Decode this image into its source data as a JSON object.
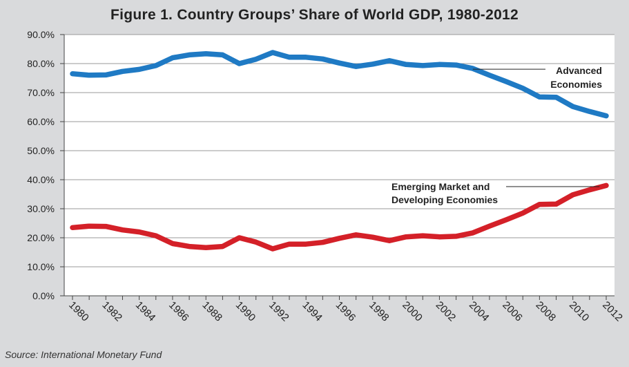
{
  "source": "Source: International Monetary Fund",
  "chart_data": {
    "type": "line",
    "title": "Figure 1. Country Groups’ Share of World GDP, 1980-2012",
    "xlabel": "",
    "ylabel": "",
    "ylim": [
      0,
      90
    ],
    "y_ticks": [
      "0.0%",
      "10.0%",
      "20.0%",
      "30.0%",
      "40.0%",
      "50.0%",
      "60.0%",
      "70.0%",
      "80.0%",
      "90.0%"
    ],
    "x_tick_labels": [
      "1980",
      "1982",
      "1984",
      "1986",
      "1988",
      "1990",
      "1992",
      "1994",
      "1996",
      "1998",
      "2000",
      "2002",
      "2004",
      "2006",
      "2008",
      "2010",
      "2012"
    ],
    "x": [
      1980,
      1981,
      1982,
      1983,
      1984,
      1985,
      1986,
      1987,
      1988,
      1989,
      1990,
      1991,
      1992,
      1993,
      1994,
      1995,
      1996,
      1997,
      1998,
      1999,
      2000,
      2001,
      2002,
      2003,
      2004,
      2005,
      2006,
      2007,
      2008,
      2009,
      2010,
      2011,
      2012
    ],
    "grid": true,
    "series": [
      {
        "name": "Advanced Economies",
        "label_lines": [
          "Advanced",
          "Economies"
        ],
        "color": "#1f7ac4",
        "values": [
          76.5,
          76.0,
          76.1,
          77.3,
          78.0,
          79.3,
          82.0,
          83.0,
          83.4,
          83.0,
          80.0,
          81.5,
          83.8,
          82.2,
          82.2,
          81.6,
          80.2,
          79.0,
          79.8,
          81.0,
          79.7,
          79.3,
          79.7,
          79.5,
          78.3,
          76.0,
          73.8,
          71.5,
          68.5,
          68.4,
          65.2,
          63.5,
          62.0
        ]
      },
      {
        "name": "Emerging Market and Developing Economies",
        "label_lines": [
          "Emerging Market and",
          "Developing Economies"
        ],
        "color": "#d42028",
        "values": [
          23.5,
          24.0,
          23.9,
          22.7,
          22.0,
          20.7,
          18.0,
          17.0,
          16.6,
          17.0,
          20.0,
          18.5,
          16.2,
          17.8,
          17.8,
          18.4,
          19.8,
          21.0,
          20.2,
          19.0,
          20.3,
          20.7,
          20.3,
          20.5,
          21.7,
          24.0,
          26.2,
          28.5,
          31.5,
          31.6,
          34.8,
          36.5,
          38.0
        ]
      }
    ]
  }
}
